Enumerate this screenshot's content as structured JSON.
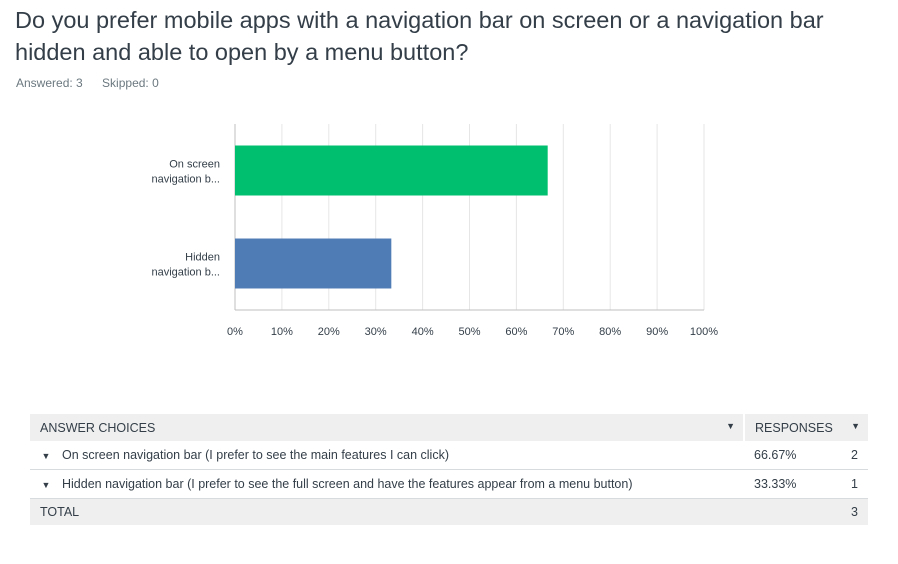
{
  "question": {
    "title": "Do you prefer mobile apps with a navigation bar on screen or a navigation bar hidden and able to open by a menu button?",
    "answered": "Answered: 3",
    "skipped": "Skipped: 0"
  },
  "colors": {
    "series": [
      "#00bf6f",
      "#507cb6"
    ],
    "grid": "#e6e6e6",
    "axis": "#bfbfbf"
  },
  "chart_data": {
    "type": "bar",
    "orientation": "horizontal",
    "categories": [
      {
        "line1": "On screen",
        "line2": "navigation b..."
      },
      {
        "line1": "Hidden",
        "line2": "navigation b..."
      }
    ],
    "values": [
      66.67,
      33.33
    ],
    "xlim": [
      0,
      100
    ],
    "ticks": [
      "0%",
      "10%",
      "20%",
      "30%",
      "40%",
      "50%",
      "60%",
      "70%",
      "80%",
      "90%",
      "100%"
    ],
    "grid": true
  },
  "table": {
    "headers": {
      "choices": "ANSWER CHOICES",
      "responses": "RESPONSES"
    },
    "rows": [
      {
        "choice": "On screen navigation bar (I prefer to see the main features I can click)",
        "percent": "66.67%",
        "count": "2"
      },
      {
        "choice": "Hidden navigation bar (I prefer to see the full screen and have the features appear from a menu button)",
        "percent": "33.33%",
        "count": "1"
      }
    ],
    "total": {
      "label": "TOTAL",
      "count": "3"
    }
  }
}
